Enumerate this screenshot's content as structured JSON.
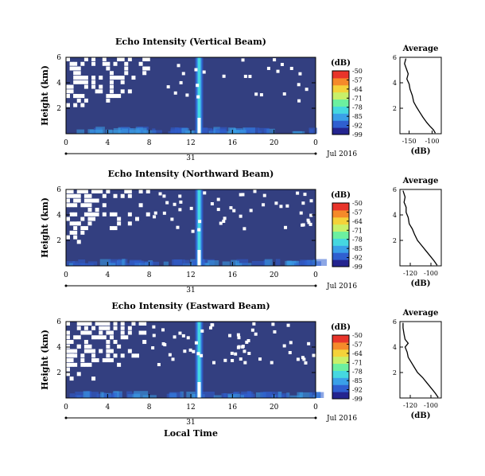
{
  "colors": {
    "background": "#333f80",
    "white_gap": "#ffffff",
    "colormap": [
      "#24248f",
      "#2f5fd0",
      "#3aa0e8",
      "#45d8e0",
      "#6cf0a0",
      "#c8f06a",
      "#f4d23a",
      "#f58a2a",
      "#e8342a"
    ]
  },
  "shared_axis": {
    "x_ticks": [
      "0",
      "4",
      "8",
      "12",
      "16",
      "20",
      "0"
    ],
    "day_label": "31",
    "date_label": "Jul 2016",
    "x_title": "Local Time",
    "y_title": "Height (km)",
    "y_ticks": [
      "6",
      "4",
      "2"
    ],
    "colorbar_unit": "(dB)",
    "colorbar_ticks": [
      "-50",
      "-57",
      "-64",
      "-71",
      "-78",
      "-85",
      "-92",
      "-99"
    ]
  },
  "chart_data": [
    {
      "type": "heatmap",
      "title": "Echo Intensity (Vertical Beam)",
      "xlim": [
        0,
        24
      ],
      "ylim": [
        0,
        6
      ],
      "zlim": [
        -99,
        -50
      ],
      "ylabel": "Height (km)",
      "colorbar_label": "(dB)",
      "notes": "background ~ -96 dB; strong echo column near 12.8 h local time; white = missing data at upper heights in early hours",
      "profile": {
        "title": "Average",
        "xlabel": "(dB)",
        "x_ticks": [
          "-150",
          "-100"
        ],
        "y_ticks": [
          "6",
          "4",
          "2"
        ],
        "xlim": [
          -170,
          -80
        ],
        "ylim": [
          0,
          6
        ],
        "points": [
          [
            -93,
            0.05
          ],
          [
            -97,
            0.3
          ],
          [
            -105,
            0.6
          ],
          [
            -112,
            0.9
          ],
          [
            -120,
            1.3
          ],
          [
            -127,
            1.7
          ],
          [
            -134,
            2.1
          ],
          [
            -140,
            2.5
          ],
          [
            -143,
            3.0
          ],
          [
            -148,
            3.5
          ],
          [
            -150,
            3.9
          ],
          [
            -155,
            4.3
          ],
          [
            -152,
            4.7
          ],
          [
            -156,
            5.1
          ],
          [
            -160,
            5.5
          ],
          [
            -157,
            5.9
          ]
        ]
      }
    },
    {
      "type": "heatmap",
      "title": "Echo Intensity (Northward Beam)",
      "xlim": [
        0,
        24
      ],
      "ylim": [
        0,
        6
      ],
      "zlim": [
        -99,
        -50
      ],
      "ylabel": "Height (km)",
      "colorbar_label": "(dB)",
      "profile": {
        "title": "Average",
        "xlabel": "(dB)",
        "x_ticks": [
          "-120",
          "-100"
        ],
        "y_ticks": [
          "6",
          "4",
          "2"
        ],
        "xlim": [
          -130,
          -90
        ],
        "ylim": [
          0,
          6
        ],
        "points": [
          [
            -94,
            0.05
          ],
          [
            -97,
            0.4
          ],
          [
            -101,
            0.8
          ],
          [
            -105,
            1.2
          ],
          [
            -109,
            1.6
          ],
          [
            -113,
            2.0
          ],
          [
            -116,
            2.5
          ],
          [
            -118,
            2.9
          ],
          [
            -121,
            3.3
          ],
          [
            -122,
            3.8
          ],
          [
            -124,
            4.2
          ],
          [
            -124,
            4.6
          ],
          [
            -126,
            5.0
          ],
          [
            -125,
            5.4
          ],
          [
            -127,
            5.9
          ]
        ]
      }
    },
    {
      "type": "heatmap",
      "title": "Echo Intensity (Eastward Beam)",
      "xlim": [
        0,
        24
      ],
      "ylim": [
        0,
        6
      ],
      "zlim": [
        -99,
        -50
      ],
      "ylabel": "Height (km)",
      "colorbar_label": "(dB)",
      "profile": {
        "title": "Average",
        "xlabel": "(dB)",
        "x_ticks": [
          "-120",
          "-100"
        ],
        "y_ticks": [
          "6",
          "4",
          "2"
        ],
        "xlim": [
          -130,
          -90
        ],
        "ylim": [
          0,
          6
        ],
        "points": [
          [
            -93,
            0.05
          ],
          [
            -96,
            0.4
          ],
          [
            -100,
            0.8
          ],
          [
            -104,
            1.2
          ],
          [
            -108,
            1.6
          ],
          [
            -113,
            2.0
          ],
          [
            -116,
            2.4
          ],
          [
            -119,
            2.8
          ],
          [
            -122,
            3.2
          ],
          [
            -123,
            3.6
          ],
          [
            -125,
            4.0
          ],
          [
            -122,
            4.3
          ],
          [
            -125,
            4.6
          ],
          [
            -126,
            5.0
          ],
          [
            -127,
            5.5
          ],
          [
            -127,
            5.9
          ]
        ]
      }
    }
  ]
}
